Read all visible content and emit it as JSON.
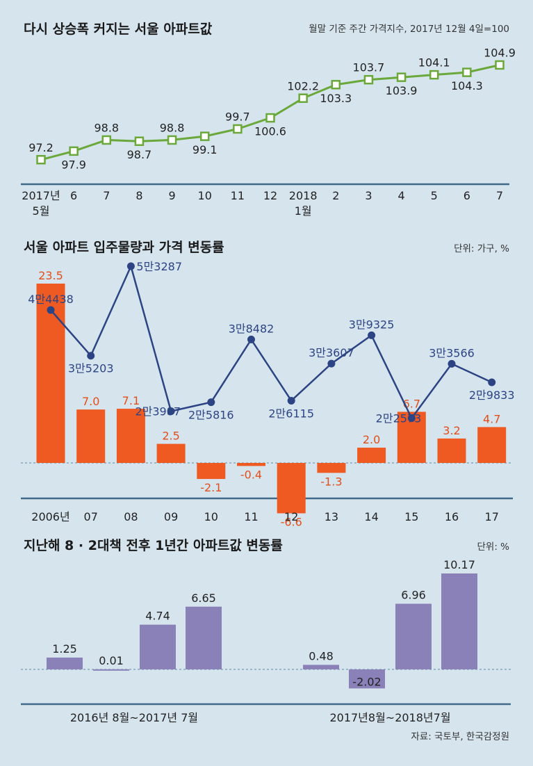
{
  "source": "자료: 국토부, 한국감정원",
  "colors": {
    "background": "#d6e4ee",
    "index_line": "#6aa83a",
    "supply_bar": "#ef5a22",
    "supply_label": "#e24e1a",
    "price_line": "#2c4483",
    "change_bar": "#8a81b8",
    "axis": "#3f6a8a"
  },
  "chart_data": [
    {
      "type": "line",
      "title": "다시 상승폭 커지는 서울 아파트값",
      "subtitle": "월말 기준 주간 가격지수, 2017년 12월 4일=100",
      "x": [
        "2017년\n5월",
        "6",
        "7",
        "8",
        "9",
        "10",
        "11",
        "12",
        "2018\n1월",
        "2",
        "3",
        "4",
        "5",
        "6",
        "7"
      ],
      "series": [
        {
          "values": [
            97.2,
            97.9,
            98.8,
            98.7,
            98.8,
            99.1,
            99.7,
            100.6,
            102.2,
            103.3,
            103.7,
            103.9,
            104.1,
            104.3,
            104.9
          ]
        }
      ],
      "value_labels": [
        "97.2",
        "97.9",
        "98.8",
        "98.7",
        "98.8",
        "99.1",
        "99.7",
        "100.6",
        "102.2",
        "103.3",
        "103.7",
        "103.9",
        "104.1",
        "104.3",
        "104.9"
      ],
      "label_positions": [
        "above",
        "below",
        "above",
        "below",
        "above",
        "below",
        "above",
        "below",
        "above",
        "below",
        "above",
        "below",
        "above",
        "below",
        "above"
      ],
      "ylim": [
        96,
        106
      ],
      "marker": "square"
    },
    {
      "type": "bar",
      "title": "서울 아파트 입주물량과 가격 변동률",
      "unit": "단위: 가구, %",
      "categories": [
        "2006년",
        "07",
        "08",
        "09",
        "10",
        "11",
        "12",
        "13",
        "14",
        "15",
        "16",
        "17"
      ],
      "series": [
        {
          "kind": "bar",
          "values": [
            23.5,
            7.0,
            7.1,
            2.5,
            -2.1,
            -0.4,
            -6.6,
            -1.3,
            2.0,
            6.7,
            3.2,
            4.7
          ],
          "labels": [
            "23.5",
            "7.0",
            "7.1",
            "2.5",
            "-2.1",
            "-0.4",
            "-6.6",
            "-1.3",
            "2.0",
            "6.7",
            "3.2",
            "4.7"
          ],
          "ylim": [
            -8,
            24
          ]
        },
        {
          "kind": "line",
          "values": [
            44438,
            35203,
            53287,
            23987,
            25816,
            38482,
            26115,
            33607,
            39325,
            22573,
            33566,
            29833
          ],
          "labels": [
            "4만4438",
            "3만5203",
            "5만3287",
            "2만3987",
            "2만5816",
            "3만8482",
            "2만6115",
            "3만3607",
            "3만9325",
            "2만2573",
            "3만3566",
            "2만9833"
          ],
          "label_positions": [
            "above",
            "below",
            "right",
            "left",
            "below",
            "above",
            "below",
            "above",
            "above",
            "left",
            "above",
            "below"
          ],
          "ylim": [
            20000,
            55000
          ]
        }
      ]
    },
    {
      "type": "bar",
      "title": "지난해 8 · 2대책 전후 1년간 아파트값 변동률",
      "unit": "단위: %",
      "groups": [
        {
          "label": "2016년 8월~2017년 7월",
          "values": [
            1.25,
            0.01,
            4.74,
            6.65
          ],
          "labels": [
            "1.25",
            "0.01",
            "4.74",
            "6.65"
          ]
        },
        {
          "label": "2017년8월~2018년7월",
          "values": [
            0.48,
            -2.02,
            6.96,
            10.17
          ],
          "labels": [
            "0.48",
            "-2.02",
            "6.96",
            "10.17"
          ]
        }
      ],
      "ylim": [
        -3,
        11
      ]
    }
  ]
}
